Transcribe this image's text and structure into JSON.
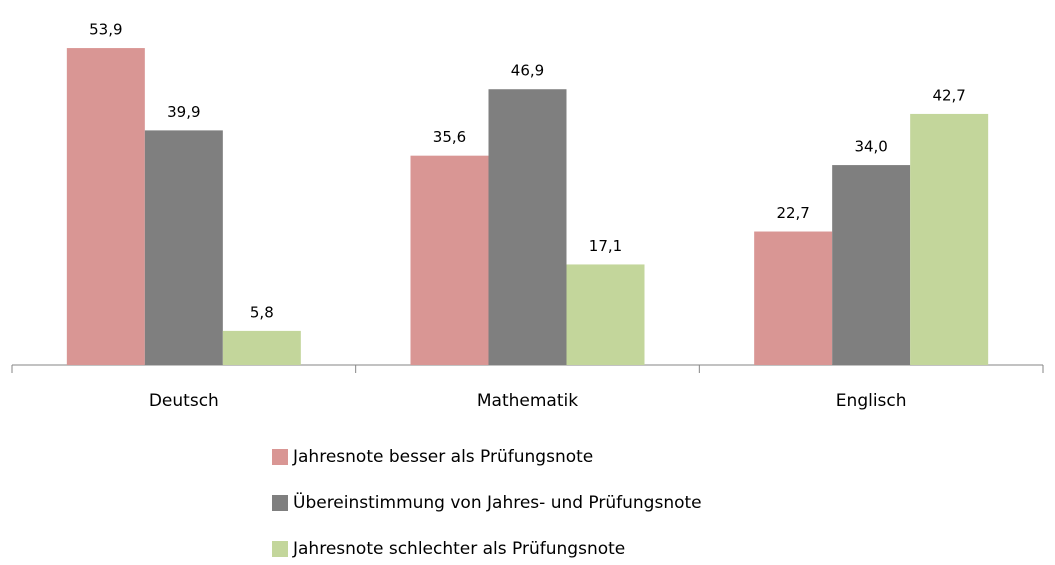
{
  "chart_data": {
    "type": "bar",
    "categories": [
      "Deutsch",
      "Mathematik",
      "Englisch"
    ],
    "series": [
      {
        "name": "Jahresnote besser als Prüfungsnote",
        "color": "#d99694",
        "values": [
          53.9,
          35.6,
          22.7
        ],
        "value_labels": [
          "53,9",
          "35,6",
          "22,7"
        ]
      },
      {
        "name": "Übereinstimmung von Jahres- und Prüfungsnote",
        "color": "#7f7f7f",
        "values": [
          39.9,
          46.9,
          34.0
        ],
        "value_labels": [
          "39,9",
          "46,9",
          "34,0"
        ]
      },
      {
        "name": "Jahresnote schlechter als Prüfungsnote",
        "color": "#c3d69b",
        "values": [
          5.8,
          17.1,
          42.7
        ],
        "value_labels": [
          "5,8",
          "17,1",
          "42,7"
        ]
      }
    ]
  }
}
